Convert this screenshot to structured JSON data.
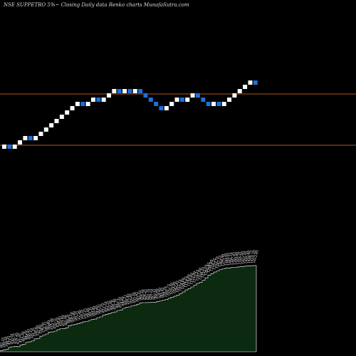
{
  "page": {
    "title": "NSE SUPPETRO 5%~  Closing Daily data  Renko  charts MunafaSutra.com"
  },
  "colors": {
    "background": "#000000",
    "up_brick": "#ffffff",
    "down_brick": "#1e6fdc",
    "level_line": "#b0581e",
    "volume_fill": "#0b2a10",
    "volume_stroke": "#ffffff"
  },
  "chart_data": {
    "type": "renko",
    "brick_direction": [
      "up",
      "down",
      "up",
      "up",
      "up",
      "down",
      "up",
      "up",
      "up",
      "up",
      "up",
      "up",
      "up",
      "up",
      "up",
      "down",
      "up",
      "up",
      "down",
      "up",
      "up",
      "up",
      "down",
      "up",
      "down",
      "up",
      "down",
      "down",
      "down",
      "down",
      "down",
      "up",
      "up",
      "up",
      "down",
      "up",
      "up",
      "down",
      "down",
      "down",
      "up",
      "down",
      "up",
      "up",
      "up",
      "up",
      "up",
      "up",
      "down"
    ],
    "levels": [
      "upper",
      "lower"
    ],
    "volume": {
      "values": [
        382,
        390,
        398,
        423,
        430,
        436,
        431,
        451,
        462,
        484,
        490,
        501,
        526,
        532,
        558,
        572,
        585,
        608,
        610,
        620,
        638,
        650,
        651,
        660,
        686,
        695,
        700,
        711,
        720,
        732,
        736,
        749,
        760,
        765,
        783,
        792,
        812,
        823,
        832,
        844,
        851,
        869,
        874,
        895,
        906,
        912,
        925,
        931,
        945,
        960,
        964,
        965,
        966,
        967,
        969,
        979,
        985,
        994,
        1001,
        1016,
        1029,
        1042,
        1055,
        1074,
        1094,
        1118,
        1134,
        1153,
        1173,
        1197,
        1208,
        1233,
        1263,
        1296,
        1314,
        1333,
        1347,
        1364,
        1373,
        1380,
        1382,
        1387,
        1390,
        1393,
        1397,
        1401,
        1405,
        1408,
        1410,
        1412
      ],
      "labels": [
        "382.25",
        "390.50",
        "398.35",
        "423.10",
        "430.75",
        "436.40",
        "431.05",
        "451.30",
        "462.20",
        "484.65",
        "490.10",
        "501.25",
        "526.40",
        "532.80",
        "558.90",
        "572.15",
        "585.40",
        "608.30",
        "610.75",
        "620.20",
        "638.45",
        "650.60",
        "651.90",
        "660.35",
        "686.10",
        "695.80",
        "700.25",
        "711.40",
        "720.55",
        "732.15",
        "736.90",
        "749.35",
        "760.80",
        "765.40",
        "783.25",
        "792.70",
        "812.10",
        "823.55",
        "832.90",
        "844.30",
        "851.75",
        "869.20",
        "874.60",
        "895.15",
        "906.40",
        "912.85",
        "925.30",
        "931.65",
        "945.10",
        "960.50",
        "964.25",
        "965.70",
        "966.10",
        "967.35",
        "969.80",
        "979.40",
        "985.65",
        "994.20",
        "1001.75",
        "1016.30",
        "1029.90",
        "1042.45",
        "1055.10",
        "1074.60",
        "1094.25",
        "1118.80",
        "1134.40",
        "1153.90",
        "1173.25",
        "1197.60",
        "1208.35",
        "1233.10",
        "1263.45",
        "1296.80",
        "1314.25",
        "1333.70",
        "1347.15",
        "1364.90",
        "1373.20",
        "1380.65",
        "1382.10",
        "1387.45",
        "1390.80",
        "1393.25",
        "1397.60",
        "1401.05",
        "1405.40",
        "1408.75",
        "1410.30",
        "1412.85"
      ]
    }
  }
}
